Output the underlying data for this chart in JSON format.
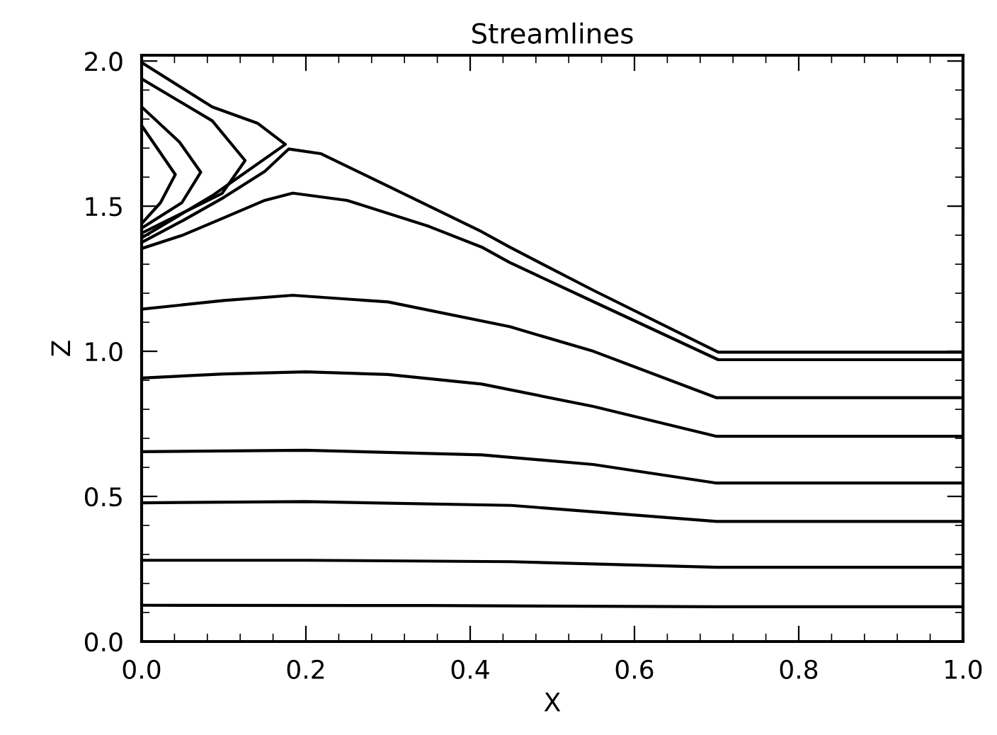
{
  "chart_data": {
    "type": "line",
    "title": "Streamlines",
    "xlabel": "X",
    "ylabel": "Z",
    "xlim": [
      0,
      1
    ],
    "ylim": [
      0,
      2.02
    ],
    "xticks": [
      {
        "value": 0,
        "label": "0.0"
      },
      {
        "value": 0.2,
        "label": "0.2"
      },
      {
        "value": 0.4,
        "label": "0.4"
      },
      {
        "value": 0.6,
        "label": "0.6"
      },
      {
        "value": 0.8,
        "label": "0.8"
      },
      {
        "value": 1,
        "label": "1.0"
      }
    ],
    "yticks": [
      {
        "value": 0,
        "label": "0.0"
      },
      {
        "value": 0.5,
        "label": "0.5"
      },
      {
        "value": 1,
        "label": "1.0"
      },
      {
        "value": 1.5,
        "label": "1.5"
      },
      {
        "value": 2,
        "label": "2.0"
      }
    ],
    "grid": false,
    "marker": "none",
    "line_style": "solid",
    "series": [
      {
        "color": "#000000",
        "x": [
          0,
          0.35,
          0.7,
          1
        ],
        "values": [
          0.125,
          0.124,
          0.12,
          0.12
        ]
      },
      {
        "color": "#000000",
        "x": [
          0,
          0.2,
          0.45,
          0.7,
          1
        ],
        "values": [
          0.28,
          0.28,
          0.275,
          0.256,
          0.256
        ]
      },
      {
        "color": "#000000",
        "x": [
          0,
          0.2,
          0.45,
          0.7,
          1
        ],
        "values": [
          0.478,
          0.482,
          0.469,
          0.414,
          0.414
        ]
      },
      {
        "color": "#000000",
        "x": [
          0,
          0.2,
          0.414,
          0.55,
          0.7,
          1
        ],
        "values": [
          0.654,
          0.659,
          0.643,
          0.61,
          0.546,
          0.546
        ]
      },
      {
        "color": "#000000",
        "x": [
          0,
          0.1,
          0.2,
          0.3,
          0.414,
          0.55,
          0.7,
          1
        ],
        "values": [
          0.908,
          0.922,
          0.929,
          0.92,
          0.887,
          0.81,
          0.707,
          0.707
        ]
      },
      {
        "color": "#000000",
        "x": [
          0,
          0.1,
          0.184,
          0.3,
          0.448,
          0.55,
          0.7,
          1
        ],
        "values": [
          1.145,
          1.175,
          1.193,
          1.17,
          1.085,
          1.0,
          0.84,
          0.84
        ]
      },
      {
        "color": "#000000",
        "x": [
          0,
          0.05,
          0.1,
          0.15,
          0.184,
          0.25,
          0.35,
          0.414,
          0.448,
          0.55,
          0.702,
          1
        ],
        "values": [
          1.354,
          1.4,
          1.46,
          1.52,
          1.545,
          1.52,
          1.43,
          1.359,
          1.306,
          1.171,
          0.971,
          0.971
        ]
      },
      {
        "color": "#000000",
        "x": [
          0,
          0.05,
          0.1,
          0.15,
          0.179,
          0.218,
          0.3,
          0.414,
          0.448,
          0.55,
          0.702,
          1
        ],
        "values": [
          1.375,
          1.45,
          1.53,
          1.62,
          1.697,
          1.681,
          1.569,
          1.412,
          1.359,
          1.21,
          0.997,
          0.997
        ]
      },
      {
        "color": "#000000",
        "x": [
          0,
          0.086,
          0.141,
          0.175,
          0.086,
          0
        ],
        "values": [
          1.995,
          1.842,
          1.786,
          1.713,
          1.536,
          1.391
        ]
      },
      {
        "color": "#000000",
        "x": [
          0,
          0.086,
          0.126,
          0.098,
          0
        ],
        "values": [
          1.939,
          1.794,
          1.657,
          1.544,
          1.407
        ]
      },
      {
        "color": "#000000",
        "x": [
          0,
          0.046,
          0.072,
          0.049,
          0
        ],
        "values": [
          1.842,
          1.721,
          1.617,
          1.512,
          1.424
        ]
      },
      {
        "color": "#000000",
        "x": [
          0,
          0.041,
          0.023,
          0
        ],
        "values": [
          1.778,
          1.609,
          1.512,
          1.44
        ]
      }
    ]
  }
}
